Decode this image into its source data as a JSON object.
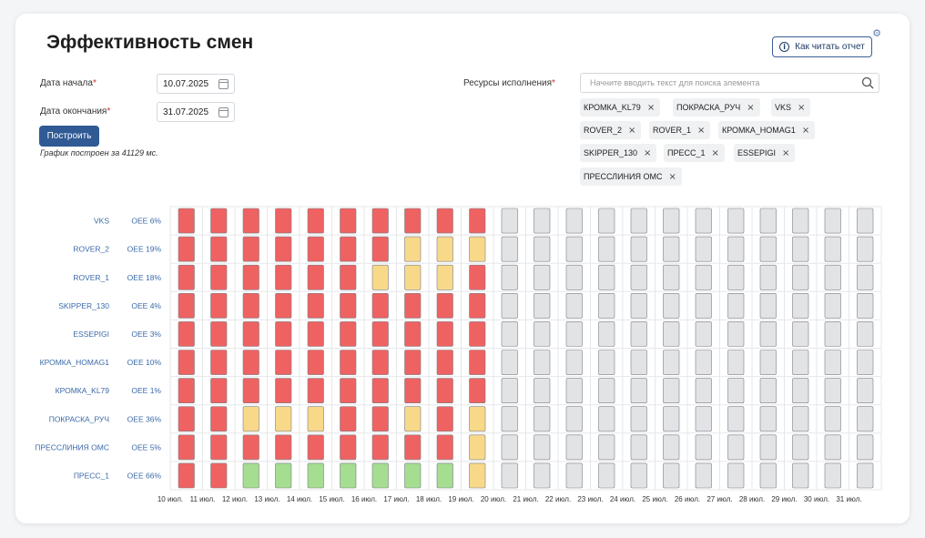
{
  "title": "Эффективность смен",
  "help_button": "Как читать отчет",
  "form": {
    "start_label": "Дата начала",
    "end_label": "Дата окончания",
    "required_mark": "*",
    "start_value": "10.07.2025",
    "end_value": "31.07.2025",
    "build_label": "Построить",
    "build_note": "График построен за 41129 мс.",
    "resources_label": "Ресурсы исполнения",
    "search_placeholder": "Начните вводить текст для поиска элемента",
    "tags": [
      "КРОМКА_KL79",
      "ПОКРАСКА_РУЧ",
      "VKS",
      "ROVER_2",
      "ROVER_1",
      "КРОМКА_HOMAG1",
      "SKIPPER_130",
      "ПРЕСС_1",
      "ESSEPIGI",
      "ПРЕССЛИНИЯ ОМС"
    ]
  },
  "colors": {
    "red": "#ef6262",
    "yellow": "#f8d98a",
    "green": "#a5dd91",
    "gray": "#e2e3e5",
    "accent": "#2f5a94"
  },
  "chart_data": {
    "type": "heatmap",
    "x": [
      "10 июл.",
      "11 июл.",
      "12 июл.",
      "13 июл.",
      "14 июл.",
      "15 июл.",
      "16 июл.",
      "17 июл.",
      "18 июл.",
      "19 июл.",
      "20 июл.",
      "21 июл.",
      "22 июл.",
      "23 июл.",
      "24 июл.",
      "25 июл.",
      "26 июл.",
      "27 июл.",
      "28 июл.",
      "29 июл.",
      "30 июл.",
      "31 июл."
    ],
    "rows": [
      {
        "name": "VKS",
        "oee": "OEE 6%",
        "cells": [
          "R",
          "R",
          "R",
          "R",
          "R",
          "R",
          "R",
          "R",
          "R",
          "R",
          "G",
          "G",
          "G",
          "G",
          "G",
          "G",
          "G",
          "G",
          "G",
          "G",
          "G",
          "G"
        ]
      },
      {
        "name": "ROVER_2",
        "oee": "OEE 19%",
        "cells": [
          "R",
          "R",
          "R",
          "R",
          "R",
          "R",
          "R",
          "Y",
          "Y",
          "Y",
          "G",
          "G",
          "G",
          "G",
          "G",
          "G",
          "G",
          "G",
          "G",
          "G",
          "G",
          "G"
        ]
      },
      {
        "name": "ROVER_1",
        "oee": "OEE 18%",
        "cells": [
          "R",
          "R",
          "R",
          "R",
          "R",
          "R",
          "Y",
          "Y",
          "Y",
          "R",
          "G",
          "G",
          "G",
          "G",
          "G",
          "G",
          "G",
          "G",
          "G",
          "G",
          "G",
          "G"
        ]
      },
      {
        "name": "SKIPPER_130",
        "oee": "OEE 4%",
        "cells": [
          "R",
          "R",
          "R",
          "R",
          "R",
          "R",
          "R",
          "R",
          "R",
          "R",
          "G",
          "G",
          "G",
          "G",
          "G",
          "G",
          "G",
          "G",
          "G",
          "G",
          "G",
          "G"
        ]
      },
      {
        "name": "ESSEPIGI",
        "oee": "OEE 3%",
        "cells": [
          "R",
          "R",
          "R",
          "R",
          "R",
          "R",
          "R",
          "R",
          "R",
          "R",
          "G",
          "G",
          "G",
          "G",
          "G",
          "G",
          "G",
          "G",
          "G",
          "G",
          "G",
          "G"
        ]
      },
      {
        "name": "КРОМКА_HOMAG1",
        "oee": "OEE 10%",
        "cells": [
          "R",
          "R",
          "R",
          "R",
          "R",
          "R",
          "R",
          "R",
          "R",
          "R",
          "G",
          "G",
          "G",
          "G",
          "G",
          "G",
          "G",
          "G",
          "G",
          "G",
          "G",
          "G"
        ]
      },
      {
        "name": "КРОМКА_KL79",
        "oee": "OEE 1%",
        "cells": [
          "R",
          "R",
          "R",
          "R",
          "R",
          "R",
          "R",
          "R",
          "R",
          "R",
          "G",
          "G",
          "G",
          "G",
          "G",
          "G",
          "G",
          "G",
          "G",
          "G",
          "G",
          "G"
        ]
      },
      {
        "name": "ПОКРАСКА_РУЧ",
        "oee": "OEE 36%",
        "cells": [
          "R",
          "R",
          "Y",
          "Y",
          "Y",
          "R",
          "R",
          "Y",
          "R",
          "Y",
          "G",
          "G",
          "G",
          "G",
          "G",
          "G",
          "G",
          "G",
          "G",
          "G",
          "G",
          "G"
        ]
      },
      {
        "name": "ПРЕССЛИНИЯ ОМС",
        "oee": "OEE 5%",
        "cells": [
          "R",
          "R",
          "R",
          "R",
          "R",
          "R",
          "R",
          "R",
          "R",
          "Y",
          "G",
          "G",
          "G",
          "G",
          "G",
          "G",
          "G",
          "G",
          "G",
          "G",
          "G",
          "G"
        ]
      },
      {
        "name": "ПРЕСС_1",
        "oee": "OEE 66%",
        "cells": [
          "R",
          "R",
          "Gr",
          "Gr",
          "Gr",
          "Gr",
          "Gr",
          "Gr",
          "Gr",
          "Y",
          "G",
          "G",
          "G",
          "G",
          "G",
          "G",
          "G",
          "G",
          "G",
          "G",
          "G",
          "G"
        ]
      }
    ],
    "legend": {
      "R": "red",
      "Y": "yellow",
      "Gr": "green",
      "G": "gray"
    }
  }
}
